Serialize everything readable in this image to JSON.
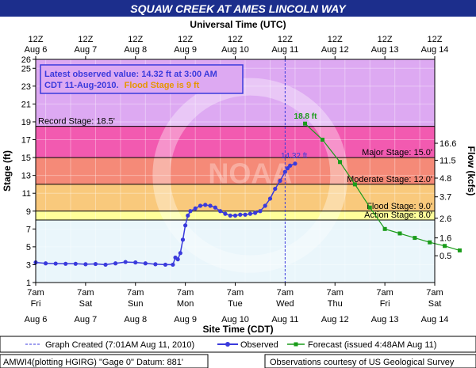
{
  "chart_data": {
    "type": "line",
    "title": "SQUAW CREEK AT AMES LINCOLN WAY",
    "top_axis_title": "Universal Time (UTC)",
    "bottom_axis_title": "Site Time (CDT)",
    "ylabel_left": "Stage (ft)",
    "ylabel_right": "Flow (kcfs)",
    "ylim": [
      1,
      26
    ],
    "y_ticks": [
      1,
      3,
      5,
      7,
      9,
      11,
      13,
      15,
      17,
      19,
      21,
      23,
      25,
      26
    ],
    "x_day_range": [
      6,
      14
    ],
    "top_ticks": [
      {
        "time": "12Z",
        "date": "Aug 6"
      },
      {
        "time": "12Z",
        "date": "Aug 7"
      },
      {
        "time": "12Z",
        "date": "Aug 8"
      },
      {
        "time": "12Z",
        "date": "Aug 9"
      },
      {
        "time": "12Z",
        "date": "Aug 10"
      },
      {
        "time": "12Z",
        "date": "Aug 11"
      },
      {
        "time": "12Z",
        "date": "Aug 12"
      },
      {
        "time": "12Z",
        "date": "Aug 13"
      },
      {
        "time": "12Z",
        "date": "Aug 14"
      }
    ],
    "bottom_ticks": [
      {
        "time": "7am",
        "dow": "Fri",
        "date": "Aug 6"
      },
      {
        "time": "7am",
        "dow": "Sat",
        "date": "Aug 7"
      },
      {
        "time": "7am",
        "dow": "Sun",
        "date": "Aug 8"
      },
      {
        "time": "7am",
        "dow": "Mon",
        "date": "Aug 9"
      },
      {
        "time": "7am",
        "dow": "Tue",
        "date": "Aug 10"
      },
      {
        "time": "7am",
        "dow": "Wed",
        "date": "Aug 11"
      },
      {
        "time": "7am",
        "dow": "Thu",
        "date": "Aug 12"
      },
      {
        "time": "7am",
        "dow": "Fri",
        "date": "Aug 13"
      },
      {
        "time": "7am",
        "dow": "Sat",
        "date": "Aug 14"
      }
    ],
    "flow_ticks": [
      {
        "stage": 4.0,
        "label": "0.5"
      },
      {
        "stage": 6.0,
        "label": "1.6"
      },
      {
        "stage": 8.2,
        "label": "2.6"
      },
      {
        "stage": 10.6,
        "label": "3.7"
      },
      {
        "stage": 12.7,
        "label": "4.8"
      },
      {
        "stage": 14.7,
        "label": "11.5"
      },
      {
        "stage": 16.6,
        "label": "16.6"
      }
    ],
    "stage_bands": [
      {
        "from": 1,
        "to": 8.0,
        "color": "#eaf6fb"
      },
      {
        "from": 8.0,
        "to": 9.0,
        "color": "#ffff9a"
      },
      {
        "from": 9.0,
        "to": 12.0,
        "color": "#f9c97c"
      },
      {
        "from": 12.0,
        "to": 15.0,
        "color": "#f58a78"
      },
      {
        "from": 15.0,
        "to": 18.5,
        "color": "#f25ab0"
      },
      {
        "from": 18.5,
        "to": 26,
        "color": "#dda9f2"
      }
    ],
    "thresholds": [
      {
        "label": "Record Stage: 18.5'",
        "value": 18.5,
        "side": "left"
      },
      {
        "label": "Major Stage: 15.0'",
        "value": 15.0,
        "side": "right"
      },
      {
        "label": "Moderate Stage: 12.0'",
        "value": 12.0,
        "side": "right"
      },
      {
        "label": "Flood Stage: 9.0'",
        "value": 9.0,
        "side": "right"
      },
      {
        "label": "Action Stage: 8.0'",
        "value": 8.0,
        "side": "right"
      }
    ],
    "created_day": 11.0,
    "latest_box": {
      "line1": "Latest observed value: 14.32 ft at 3:00 AM",
      "line2a": "CDT 11-Aug-2010.",
      "line2b": "Flood Stage is 9 ft"
    },
    "observed_peak_label": "14.32 ft",
    "forecast_peak_label": "18.8 ft",
    "series": [
      {
        "name": "Observed",
        "color": "#3a3adc",
        "points": [
          [
            6.0,
            3.25
          ],
          [
            6.2,
            3.15
          ],
          [
            6.4,
            3.12
          ],
          [
            6.6,
            3.1
          ],
          [
            6.8,
            3.1
          ],
          [
            7.0,
            3.05
          ],
          [
            7.2,
            3.08
          ],
          [
            7.4,
            3.0
          ],
          [
            7.6,
            3.15
          ],
          [
            7.8,
            3.3
          ],
          [
            8.0,
            3.25
          ],
          [
            8.2,
            3.15
          ],
          [
            8.4,
            3.05
          ],
          [
            8.6,
            3.0
          ],
          [
            8.75,
            3.0
          ],
          [
            8.8,
            3.8
          ],
          [
            8.85,
            3.6
          ],
          [
            8.9,
            4.3
          ],
          [
            8.95,
            5.8
          ],
          [
            9.0,
            7.4
          ],
          [
            9.05,
            8.5
          ],
          [
            9.1,
            9.0
          ],
          [
            9.2,
            9.3
          ],
          [
            9.3,
            9.6
          ],
          [
            9.4,
            9.7
          ],
          [
            9.5,
            9.6
          ],
          [
            9.6,
            9.4
          ],
          [
            9.7,
            9.0
          ],
          [
            9.8,
            8.7
          ],
          [
            9.9,
            8.5
          ],
          [
            10.0,
            8.5
          ],
          [
            10.1,
            8.6
          ],
          [
            10.2,
            8.6
          ],
          [
            10.3,
            8.7
          ],
          [
            10.4,
            8.8
          ],
          [
            10.5,
            9.0
          ],
          [
            10.6,
            9.6
          ],
          [
            10.7,
            10.4
          ],
          [
            10.8,
            11.5
          ],
          [
            10.9,
            12.4
          ],
          [
            11.0,
            13.4
          ],
          [
            11.05,
            13.8
          ],
          [
            11.1,
            14.1
          ],
          [
            11.2,
            14.32
          ]
        ]
      },
      {
        "name": "Forecast",
        "color": "#1a9c1a",
        "points": [
          [
            11.4,
            18.8
          ],
          [
            11.75,
            17.0
          ],
          [
            12.1,
            14.5
          ],
          [
            12.4,
            12.0
          ],
          [
            12.7,
            9.4
          ],
          [
            13.0,
            7.0
          ],
          [
            13.3,
            6.5
          ],
          [
            13.6,
            6.0
          ],
          [
            13.9,
            5.5
          ],
          [
            14.2,
            5.1
          ],
          [
            14.5,
            4.6
          ]
        ]
      }
    ]
  },
  "legend": {
    "created": "Graph Created (7:01AM Aug 11, 2010)",
    "observed": "Observed",
    "forecast": "Forecast (issued 4:48AM Aug 11)"
  },
  "footer": {
    "left": "AMWI4(plotting HGIRG) \"Gage 0\" Datum: 881'",
    "right": "Observations courtesy of US Geological Survey"
  },
  "watermark_text": "NATIONAL OCEANIC AND ATMOSPHERIC ADMINISTRATION",
  "watermark_center": "NOAA",
  "colors": {
    "title_bg": "#1c2e8c",
    "page_bg": "#ffffff",
    "frame": "#000000"
  }
}
